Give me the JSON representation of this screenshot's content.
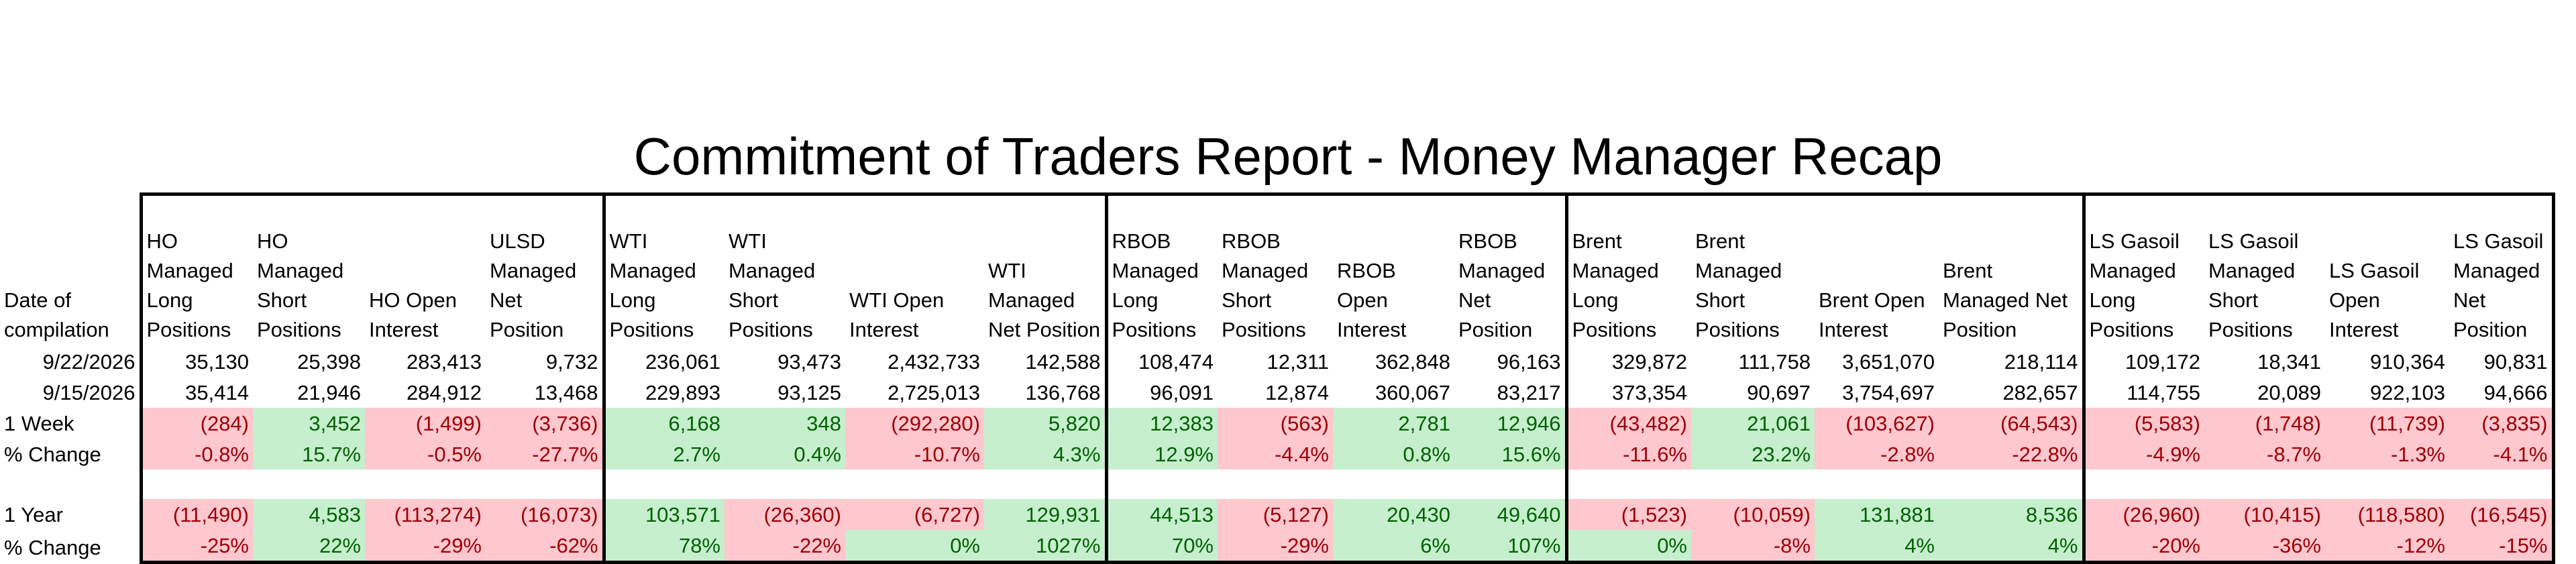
{
  "title": "Commitment of Traders Report - Money Manager Recap",
  "colors": {
    "positive_fill": "#c6efce",
    "positive_text": "#006100",
    "negative_fill": "#ffc7ce",
    "negative_text": "#9c0006"
  },
  "header": {
    "date_label": "Date of compilation",
    "columns": [
      "HO Managed Long Positions",
      "HO Managed Short Positions",
      "HO Open Interest",
      "ULSD Managed Net Position",
      "WTI Managed Long Positions",
      "WTI Managed Short Positions",
      "WTI Open Interest",
      "WTI Managed Net Position",
      "RBOB Managed Long Positions",
      "RBOB Managed Short Positions",
      "RBOB Open Interest",
      "RBOB Managed Net Position",
      "Brent Managed Long Positions",
      "Brent Managed Short Positions",
      "Brent Open Interest",
      "Brent Managed Net Position",
      "LS Gasoil Managed Long Positions",
      "LS Gasoil Managed Short Positions",
      "LS Gasoil Open Interest",
      "LS Gasoil Managed Net Position"
    ]
  },
  "rows": {
    "date1": {
      "label": "9/22/2026",
      "values": [
        "35,130",
        "25,398",
        "283,413",
        "9,732",
        "236,061",
        "93,473",
        "2,432,733",
        "142,588",
        "108,474",
        "12,311",
        "362,848",
        "96,163",
        "329,872",
        "111,758",
        "3,651,070",
        "218,114",
        "109,172",
        "18,341",
        "910,364",
        "90,831"
      ]
    },
    "date2": {
      "label": "9/15/2026",
      "values": [
        "35,414",
        "21,946",
        "284,912",
        "13,468",
        "229,893",
        "93,125",
        "2,725,013",
        "136,768",
        "96,091",
        "12,874",
        "360,067",
        "83,217",
        "373,354",
        "90,697",
        "3,754,697",
        "282,657",
        "114,755",
        "20,089",
        "922,103",
        "94,666"
      ]
    },
    "week_change": {
      "label": "1 Week",
      "values": [
        "(284)",
        "3,452",
        "(1,499)",
        "(3,736)",
        "6,168",
        "348",
        "(292,280)",
        "5,820",
        "12,383",
        "(563)",
        "2,781",
        "12,946",
        "(43,482)",
        "21,061",
        "(103,627)",
        "(64,543)",
        "(5,583)",
        "(1,748)",
        "(11,739)",
        "(3,835)"
      ]
    },
    "week_pct": {
      "label": "% Change",
      "values": [
        "-0.8%",
        "15.7%",
        "-0.5%",
        "-27.7%",
        "2.7%",
        "0.4%",
        "-10.7%",
        "4.3%",
        "12.9%",
        "-4.4%",
        "0.8%",
        "15.6%",
        "-11.6%",
        "23.2%",
        "-2.8%",
        "-22.8%",
        "-4.9%",
        "-8.7%",
        "-1.3%",
        "-4.1%"
      ]
    },
    "year_change": {
      "label": "1 Year",
      "values": [
        "(11,490)",
        "4,583",
        "(113,274)",
        "(16,073)",
        "103,571",
        "(26,360)",
        "(6,727)",
        "129,931",
        "44,513",
        "(5,127)",
        "20,430",
        "49,640",
        "(1,523)",
        "(10,059)",
        "131,881",
        "8,536",
        "(26,960)",
        "(10,415)",
        "(118,580)",
        "(16,545)"
      ]
    },
    "year_pct": {
      "label": "% Change",
      "values": [
        "-25%",
        "22%",
        "-29%",
        "-62%",
        "78%",
        "-22%",
        "0%",
        "1027%",
        "70%",
        "-29%",
        "6%",
        "107%",
        "0%",
        "-8%",
        "4%",
        "4%",
        "-20%",
        "-36%",
        "-12%",
        "-15%"
      ]
    }
  }
}
